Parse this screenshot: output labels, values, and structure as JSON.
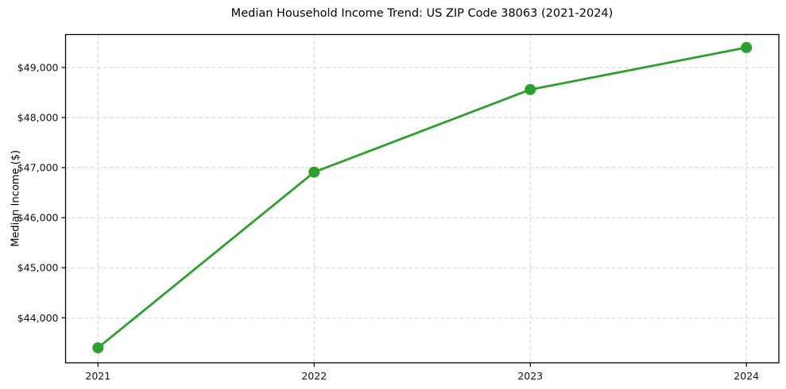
{
  "chart_data": {
    "type": "line",
    "title": "Median Household Income Trend: US ZIP Code 38063 (2021-2024)",
    "xlabel": "",
    "ylabel": "Median Income ($)",
    "x": [
      2021,
      2022,
      2023,
      2024
    ],
    "series": [
      {
        "name": "Median Household Income",
        "values": [
          43400,
          46910,
          48560,
          49400
        ]
      }
    ],
    "x_tick_labels": [
      "2021",
      "2022",
      "2023",
      "2024"
    ],
    "y_ticks": [
      44000,
      45000,
      46000,
      47000,
      48000,
      49000
    ],
    "y_tick_labels": [
      "$44,000",
      "$45,000",
      "$46,000",
      "$47,000",
      "$48,000",
      "$49,000"
    ],
    "xlim": [
      2020.85,
      2024.15
    ],
    "ylim": [
      43100,
      49660
    ],
    "grid": true,
    "grid_style": "dashed",
    "grid_color": "#cccccc",
    "line_color": "#2ca02c",
    "marker": "circle",
    "marker_size": 7,
    "line_width": 2.8,
    "legend_position": "none",
    "background": "#ffffff",
    "border_color": "#000000"
  }
}
